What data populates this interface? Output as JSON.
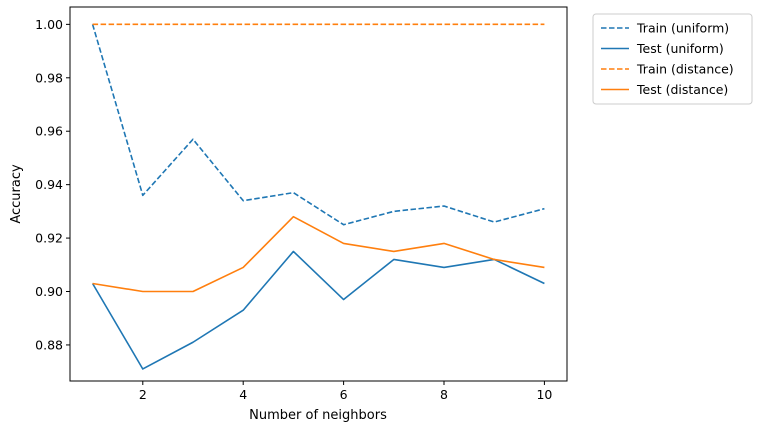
{
  "chart_data": {
    "type": "line",
    "xlabel": "Number of neighbors",
    "ylabel": "Accuracy",
    "xlim": [
      0.55,
      10.45
    ],
    "ylim": [
      0.8665,
      1.0065
    ],
    "x_ticks": [
      2,
      4,
      6,
      8,
      10
    ],
    "y_ticks": [
      0.88,
      0.9,
      0.92,
      0.94,
      0.96,
      0.98,
      1.0
    ],
    "y_tick_labels": [
      "0.88",
      "0.90",
      "0.92",
      "0.94",
      "0.96",
      "0.98",
      "1.00"
    ],
    "grid": false,
    "legend_placement": "outside-top-right",
    "x": [
      1,
      2,
      3,
      4,
      5,
      6,
      7,
      8,
      9,
      10
    ],
    "series": [
      {
        "name": "Train (uniform)",
        "color": "#1f77b4",
        "style": "dashed",
        "values": [
          1.0,
          0.936,
          0.957,
          0.934,
          0.937,
          0.925,
          0.93,
          0.932,
          0.926,
          0.931
        ]
      },
      {
        "name": "Test (uniform)",
        "color": "#1f77b4",
        "style": "solid",
        "values": [
          0.903,
          0.871,
          0.881,
          0.893,
          0.915,
          0.897,
          0.912,
          0.909,
          0.912,
          0.903
        ]
      },
      {
        "name": "Train (distance)",
        "color": "#ff7f0e",
        "style": "dashed",
        "values": [
          1.0,
          1.0,
          1.0,
          1.0,
          1.0,
          1.0,
          1.0,
          1.0,
          1.0,
          1.0
        ]
      },
      {
        "name": "Test (distance)",
        "color": "#ff7f0e",
        "style": "solid",
        "values": [
          0.903,
          0.9,
          0.9,
          0.909,
          0.928,
          0.918,
          0.915,
          0.918,
          0.912,
          0.909
        ]
      }
    ]
  }
}
